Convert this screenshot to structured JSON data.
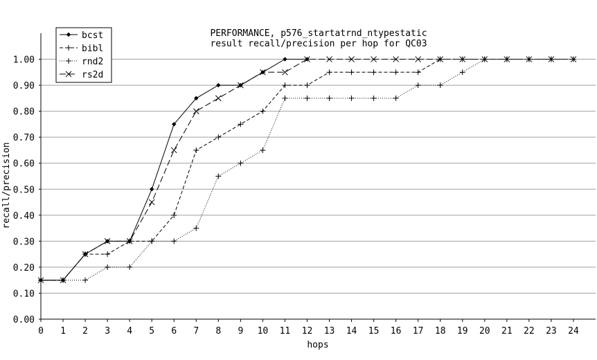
{
  "chart_data": {
    "type": "line",
    "title_lines": [
      "PERFORMANCE, p576_startatrnd_ntypestatic",
      "result recall/precision per hop for QC03"
    ],
    "xlabel": "hops",
    "ylabel": "recall/precision",
    "xlim": [
      0,
      25
    ],
    "ylim": [
      0,
      1.1
    ],
    "x_ticks": [
      0,
      1,
      2,
      3,
      4,
      5,
      6,
      7,
      8,
      9,
      10,
      11,
      12,
      13,
      14,
      15,
      16,
      17,
      18,
      19,
      20,
      21,
      22,
      23,
      24
    ],
    "y_ticks": [
      "0.00",
      "0.10",
      "0.20",
      "0.30",
      "0.40",
      "0.50",
      "0.60",
      "0.70",
      "0.80",
      "0.90",
      "1.00"
    ],
    "grid": "horizontal",
    "legend_position": "top-left",
    "series": [
      {
        "name": "bcst",
        "marker": "diamond",
        "dash": "solid",
        "x": [
          0,
          1,
          2,
          3,
          4,
          5,
          6,
          7,
          8,
          9,
          10,
          11,
          12
        ],
        "values": [
          0.15,
          0.15,
          0.25,
          0.3,
          0.3,
          0.5,
          0.75,
          0.85,
          0.9,
          0.9,
          0.95,
          1.0,
          1.0
        ]
      },
      {
        "name": "bibl",
        "marker": "plus",
        "dash": "dashed",
        "x": [
          0,
          1,
          2,
          3,
          4,
          5,
          6,
          7,
          8,
          9,
          10,
          11,
          12,
          13,
          14,
          15,
          16,
          17,
          18,
          19,
          20,
          21,
          22,
          23,
          24
        ],
        "values": [
          0.15,
          0.15,
          0.25,
          0.25,
          0.3,
          0.3,
          0.4,
          0.65,
          0.7,
          0.75,
          0.8,
          0.9,
          0.9,
          0.95,
          0.95,
          0.95,
          0.95,
          0.95,
          1.0,
          1.0,
          1.0,
          1.0,
          1.0,
          1.0,
          1.0
        ]
      },
      {
        "name": "rnd2",
        "marker": "plus",
        "dash": "dotted",
        "x": [
          0,
          1,
          2,
          3,
          4,
          5,
          6,
          7,
          8,
          9,
          10,
          11,
          12,
          13,
          14,
          15,
          16,
          17,
          18,
          19,
          20,
          21,
          22,
          23,
          24
        ],
        "values": [
          0.15,
          0.15,
          0.15,
          0.2,
          0.2,
          0.3,
          0.3,
          0.35,
          0.55,
          0.6,
          0.65,
          0.85,
          0.85,
          0.85,
          0.85,
          0.85,
          0.85,
          0.9,
          0.9,
          0.95,
          1.0,
          1.0,
          1.0,
          1.0,
          1.0
        ]
      },
      {
        "name": "rs2d",
        "marker": "x",
        "dash": "longdash",
        "x": [
          0,
          1,
          2,
          3,
          4,
          5,
          6,
          7,
          8,
          9,
          10,
          11,
          12,
          13,
          14,
          15,
          16,
          17,
          18,
          19,
          20,
          21,
          22,
          23,
          24
        ],
        "values": [
          0.15,
          0.15,
          0.25,
          0.3,
          0.3,
          0.45,
          0.65,
          0.8,
          0.85,
          0.9,
          0.95,
          0.95,
          1.0,
          1.0,
          1.0,
          1.0,
          1.0,
          1.0,
          1.0,
          1.0,
          1.0,
          1.0,
          1.0,
          1.0,
          1.0
        ]
      }
    ]
  }
}
